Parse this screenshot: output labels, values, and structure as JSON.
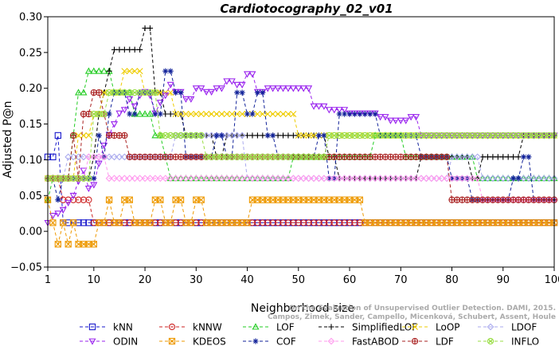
{
  "chart_data": {
    "type": "line",
    "title": "Cardiotocography_02_v01",
    "xlabel": "Neighborhood size",
    "ylabel": "Adjusted P@n",
    "xlim": [
      1,
      100
    ],
    "ylim": [
      -0.05,
      0.3
    ],
    "xticks": [
      1,
      10,
      20,
      30,
      40,
      50,
      60,
      70,
      80,
      90,
      100
    ],
    "yticks": [
      -0.05,
      0.0,
      0.05,
      0.1,
      0.15,
      0.2,
      0.25,
      0.3
    ],
    "ytick_labels": [
      "−0.05",
      "0.00",
      "0.05",
      "0.10",
      "0.15",
      "0.20",
      "0.25",
      "0.30"
    ],
    "legend_position": "bottom",
    "credits": [
      "Campos, Zimek, Sander, Campello, Micenková, Schubert, Assent, Houle",
      "On the Evaluation of Unsupervised Outlier Detection. DAMI, 2015."
    ],
    "series": [
      {
        "name": "kNN",
        "color": "#1a1acc",
        "marker": "square",
        "points": [
          [
            1,
            0.104
          ],
          [
            2,
            0.104
          ],
          [
            3,
            0.134
          ],
          [
            4,
            0.012
          ],
          [
            10,
            0.012
          ],
          [
            30,
            0.012
          ],
          [
            60,
            0.012
          ],
          [
            100,
            0.012
          ]
        ]
      },
      {
        "name": "kNNW",
        "color": "#cc2222",
        "marker": "circle",
        "points": [
          [
            1,
            0.074
          ],
          [
            2,
            0.074
          ],
          [
            3,
            0.074
          ],
          [
            4,
            0.044
          ],
          [
            9,
            0.044
          ],
          [
            10,
            0.012
          ],
          [
            100,
            0.012
          ]
        ]
      },
      {
        "name": "LOF",
        "color": "#22cc22",
        "marker": "triangle-up",
        "points": [
          [
            1,
            0.044
          ],
          [
            2,
            0.074
          ],
          [
            3,
            0.074
          ],
          [
            5,
            0.074
          ],
          [
            6,
            0.134
          ],
          [
            7,
            0.194
          ],
          [
            8,
            0.194
          ],
          [
            9,
            0.224
          ],
          [
            13,
            0.224
          ],
          [
            14,
            0.194
          ],
          [
            18,
            0.164
          ],
          [
            21,
            0.164
          ],
          [
            22,
            0.134
          ],
          [
            23,
            0.134
          ],
          [
            24,
            0.104
          ],
          [
            25,
            0.074
          ],
          [
            48,
            0.074
          ],
          [
            49,
            0.104
          ],
          [
            64,
            0.104
          ],
          [
            65,
            0.134
          ],
          [
            70,
            0.134
          ],
          [
            71,
            0.104
          ],
          [
            84,
            0.104
          ],
          [
            85,
            0.074
          ],
          [
            100,
            0.074
          ]
        ]
      },
      {
        "name": "SimplifiedLOF",
        "color": "#000000",
        "marker": "plus",
        "points": [
          [
            1,
            0.074
          ],
          [
            5,
            0.074
          ],
          [
            9,
            0.074
          ],
          [
            10,
            0.104
          ],
          [
            11,
            0.164
          ],
          [
            12,
            0.194
          ],
          [
            13,
            0.224
          ],
          [
            14,
            0.254
          ],
          [
            18,
            0.254
          ],
          [
            19,
            0.254
          ],
          [
            20,
            0.284
          ],
          [
            22,
            0.194
          ],
          [
            23,
            0.194
          ],
          [
            24,
            0.164
          ],
          [
            27,
            0.164
          ],
          [
            28,
            0.134
          ],
          [
            33,
            0.134
          ],
          [
            34,
            0.104
          ],
          [
            36,
            0.134
          ],
          [
            38,
            0.134
          ],
          [
            40,
            0.134
          ],
          [
            52,
            0.134
          ],
          [
            56,
            0.104
          ],
          [
            58,
            0.074
          ],
          [
            62,
            0.074
          ],
          [
            64,
            0.074
          ],
          [
            66,
            0.074
          ],
          [
            70,
            0.074
          ],
          [
            74,
            0.104
          ],
          [
            80,
            0.104
          ],
          [
            84,
            0.074
          ],
          [
            86,
            0.104
          ],
          [
            92,
            0.104
          ],
          [
            94,
            0.134
          ],
          [
            100,
            0.134
          ]
        ]
      },
      {
        "name": "LoOP",
        "color": "#eecc00",
        "marker": "x",
        "points": [
          [
            1,
            0.074
          ],
          [
            4,
            0.074
          ],
          [
            7,
            0.134
          ],
          [
            10,
            0.164
          ],
          [
            12,
            0.194
          ],
          [
            16,
            0.224
          ],
          [
            18,
            0.224
          ],
          [
            20,
            0.194
          ],
          [
            26,
            0.164
          ],
          [
            40,
            0.164
          ],
          [
            42,
            0.164
          ],
          [
            50,
            0.134
          ],
          [
            60,
            0.134
          ],
          [
            72,
            0.134
          ],
          [
            100,
            0.134
          ]
        ]
      },
      {
        "name": "LDOF",
        "color": "#aaaaee",
        "marker": "diamond",
        "points": [
          [
            1,
            0.074
          ],
          [
            5,
            0.104
          ],
          [
            10,
            0.104
          ],
          [
            15,
            0.104
          ],
          [
            20,
            0.104
          ],
          [
            26,
            0.134
          ],
          [
            30,
            0.134
          ],
          [
            40,
            0.074
          ],
          [
            50,
            0.074
          ],
          [
            60,
            0.074
          ],
          [
            76,
            0.074
          ],
          [
            80,
            0.104
          ],
          [
            86,
            0.074
          ],
          [
            100,
            0.074
          ]
        ]
      },
      {
        "name": "ODIN",
        "color": "#9922ee",
        "marker": "triangle-down",
        "points": [
          [
            1,
            0.012
          ],
          [
            2,
            0.022
          ],
          [
            3,
            0.025
          ],
          [
            4,
            0.03
          ],
          [
            5,
            0.04
          ],
          [
            6,
            0.05
          ],
          [
            7,
            0.07
          ],
          [
            8,
            0.085
          ],
          [
            9,
            0.06
          ],
          [
            10,
            0.065
          ],
          [
            11,
            0.095
          ],
          [
            12,
            0.12
          ],
          [
            13,
            0.135
          ],
          [
            14,
            0.15
          ],
          [
            15,
            0.165
          ],
          [
            16,
            0.17
          ],
          [
            17,
            0.185
          ],
          [
            18,
            0.175
          ],
          [
            19,
            0.19
          ],
          [
            20,
            0.195
          ],
          [
            21,
            0.19
          ],
          [
            22,
            0.165
          ],
          [
            23,
            0.18
          ],
          [
            24,
            0.19
          ],
          [
            25,
            0.205
          ],
          [
            26,
            0.195
          ],
          [
            28,
            0.185
          ],
          [
            30,
            0.2
          ],
          [
            32,
            0.195
          ],
          [
            34,
            0.2
          ],
          [
            36,
            0.21
          ],
          [
            38,
            0.205
          ],
          [
            40,
            0.22
          ],
          [
            42,
            0.195
          ],
          [
            44,
            0.2
          ],
          [
            52,
            0.2
          ],
          [
            53,
            0.175
          ],
          [
            56,
            0.17
          ],
          [
            60,
            0.165
          ],
          [
            64,
            0.165
          ],
          [
            66,
            0.16
          ],
          [
            68,
            0.155
          ],
          [
            70,
            0.155
          ],
          [
            72,
            0.16
          ],
          [
            74,
            0.134
          ],
          [
            76,
            0.134
          ],
          [
            80,
            0.134
          ],
          [
            100,
            0.134
          ]
        ]
      },
      {
        "name": "KDEOS",
        "color": "#ee9900",
        "marker": "square-x",
        "points": [
          [
            1,
            0.044
          ],
          [
            2,
            0.012
          ],
          [
            3,
            -0.018
          ],
          [
            4,
            0.012
          ],
          [
            5,
            -0.018
          ],
          [
            6,
            0.012
          ],
          [
            7,
            -0.018
          ],
          [
            9,
            -0.018
          ],
          [
            10,
            -0.018
          ],
          [
            11,
            0.012
          ],
          [
            13,
            0.044
          ],
          [
            14,
            0.012
          ],
          [
            16,
            0.044
          ],
          [
            18,
            0.012
          ],
          [
            22,
            0.044
          ],
          [
            24,
            0.012
          ],
          [
            26,
            0.044
          ],
          [
            28,
            0.012
          ],
          [
            30,
            0.044
          ],
          [
            32,
            0.012
          ],
          [
            40,
            0.012
          ],
          [
            41,
            0.044
          ],
          [
            62,
            0.044
          ],
          [
            63,
            0.012
          ],
          [
            100,
            0.012
          ]
        ]
      },
      {
        "name": "COF",
        "color": "#112299",
        "marker": "star",
        "points": [
          [
            1,
            0.074
          ],
          [
            3,
            0.044
          ],
          [
            4,
            0.074
          ],
          [
            10,
            0.074
          ],
          [
            11,
            0.134
          ],
          [
            12,
            0.104
          ],
          [
            13,
            0.164
          ],
          [
            14,
            0.194
          ],
          [
            16,
            0.194
          ],
          [
            17,
            0.164
          ],
          [
            19,
            0.194
          ],
          [
            22,
            0.164
          ],
          [
            24,
            0.224
          ],
          [
            26,
            0.194
          ],
          [
            28,
            0.104
          ],
          [
            32,
            0.104
          ],
          [
            34,
            0.134
          ],
          [
            36,
            0.104
          ],
          [
            38,
            0.194
          ],
          [
            40,
            0.164
          ],
          [
            42,
            0.194
          ],
          [
            44,
            0.134
          ],
          [
            46,
            0.104
          ],
          [
            50,
            0.104
          ],
          [
            54,
            0.134
          ],
          [
            56,
            0.074
          ],
          [
            58,
            0.164
          ],
          [
            62,
            0.164
          ],
          [
            66,
            0.134
          ],
          [
            70,
            0.134
          ],
          [
            74,
            0.104
          ],
          [
            78,
            0.104
          ],
          [
            80,
            0.074
          ],
          [
            82,
            0.074
          ],
          [
            84,
            0.044
          ],
          [
            90,
            0.044
          ],
          [
            92,
            0.074
          ],
          [
            94,
            0.104
          ],
          [
            96,
            0.044
          ],
          [
            100,
            0.044
          ]
        ]
      },
      {
        "name": "FastABOD",
        "color": "#ff99ee",
        "marker": "diamond",
        "points": [
          [
            1,
            0.074
          ],
          [
            8,
            0.074
          ],
          [
            9,
            0.104
          ],
          [
            12,
            0.104
          ],
          [
            13,
            0.074
          ],
          [
            18,
            0.074
          ],
          [
            22,
            0.074
          ],
          [
            26,
            0.074
          ],
          [
            30,
            0.074
          ],
          [
            40,
            0.074
          ],
          [
            60,
            0.074
          ],
          [
            80,
            0.074
          ],
          [
            86,
            0.044
          ],
          [
            100,
            0.044
          ]
        ]
      },
      {
        "name": "LDF",
        "color": "#aa2222",
        "marker": "circle-plus",
        "points": [
          [
            1,
            0.074
          ],
          [
            5,
            0.074
          ],
          [
            6,
            0.134
          ],
          [
            7,
            0.074
          ],
          [
            8,
            0.164
          ],
          [
            10,
            0.194
          ],
          [
            12,
            0.164
          ],
          [
            13,
            0.134
          ],
          [
            16,
            0.134
          ],
          [
            17,
            0.104
          ],
          [
            20,
            0.104
          ],
          [
            24,
            0.104
          ],
          [
            26,
            0.104
          ],
          [
            30,
            0.104
          ],
          [
            34,
            0.104
          ],
          [
            36,
            0.104
          ],
          [
            38,
            0.104
          ],
          [
            40,
            0.104
          ],
          [
            48,
            0.104
          ],
          [
            52,
            0.104
          ],
          [
            60,
            0.104
          ],
          [
            64,
            0.104
          ],
          [
            68,
            0.104
          ],
          [
            72,
            0.104
          ],
          [
            76,
            0.104
          ],
          [
            78,
            0.104
          ],
          [
            80,
            0.044
          ],
          [
            84,
            0.044
          ],
          [
            88,
            0.044
          ],
          [
            92,
            0.044
          ],
          [
            96,
            0.044
          ],
          [
            100,
            0.044
          ]
        ]
      },
      {
        "name": "INFLO",
        "color": "#99dd44",
        "marker": "circle-x",
        "points": [
          [
            1,
            0.074
          ],
          [
            5,
            0.074
          ],
          [
            10,
            0.164
          ],
          [
            12,
            0.164
          ],
          [
            13,
            0.194
          ],
          [
            16,
            0.194
          ],
          [
            20,
            0.194
          ],
          [
            22,
            0.194
          ],
          [
            23,
            0.134
          ],
          [
            26,
            0.134
          ],
          [
            28,
            0.134
          ],
          [
            32,
            0.104
          ],
          [
            40,
            0.104
          ],
          [
            50,
            0.104
          ],
          [
            54,
            0.104
          ],
          [
            56,
            0.134
          ],
          [
            60,
            0.134
          ],
          [
            66,
            0.134
          ],
          [
            70,
            0.134
          ],
          [
            74,
            0.134
          ],
          [
            80,
            0.134
          ],
          [
            100,
            0.134
          ]
        ]
      }
    ]
  }
}
